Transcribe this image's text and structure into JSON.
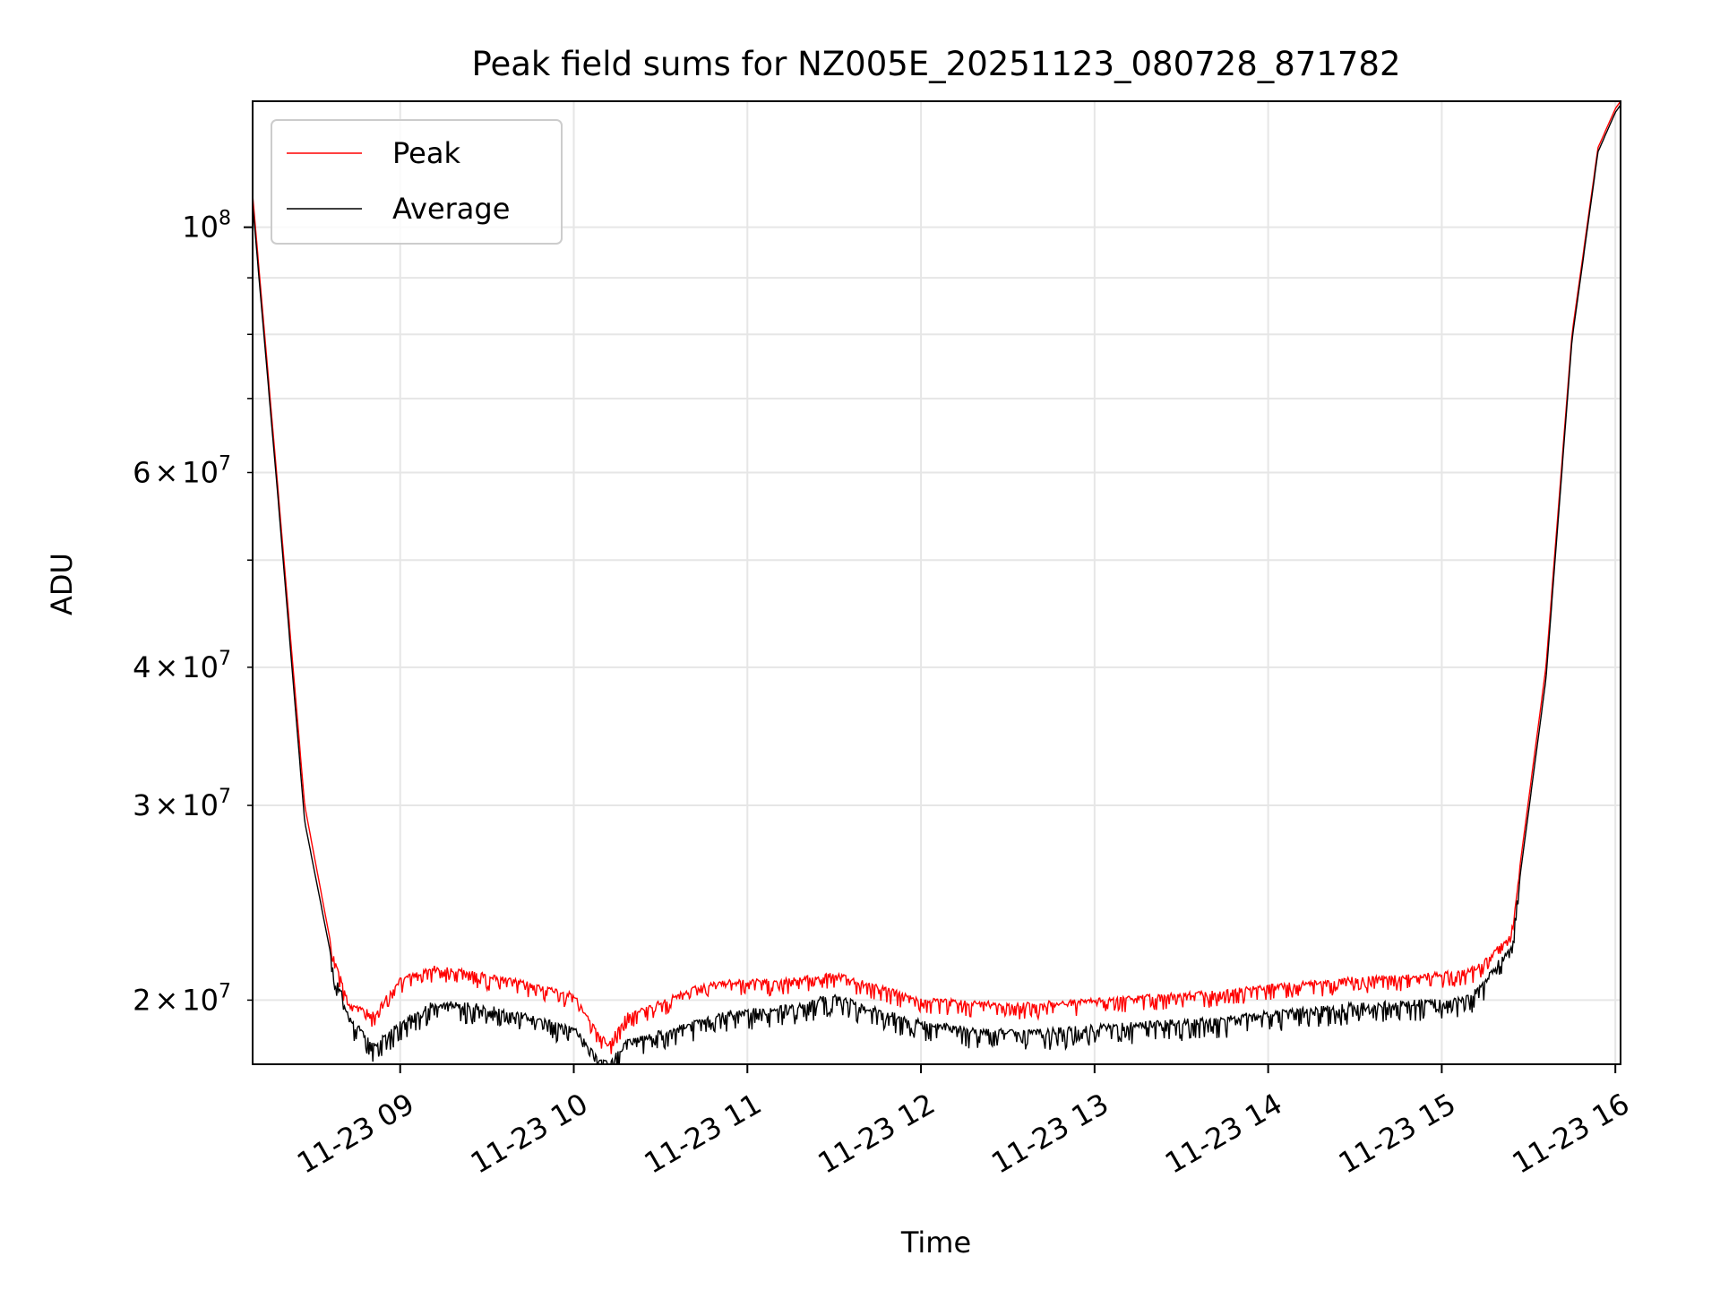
{
  "colors": {
    "background": "#ffffff",
    "grid": "#e6e6e6",
    "axes": "#000000",
    "peak": "#ff0000",
    "average": "#000000",
    "legend_border": "#cccccc"
  },
  "chart_data": {
    "type": "line",
    "title": "Peak field sums for NZ005E_20251123_080728_871782",
    "xlabel": "Time",
    "ylabel": "ADU",
    "yscale": "log",
    "grid": true,
    "legend_position": "upper-left",
    "xlim_hours": [
      8.15,
      16.03
    ],
    "ylim": [
      17500000,
      130000000
    ],
    "x_ticks": [
      {
        "value": 9,
        "label": "11-23 09"
      },
      {
        "value": 10,
        "label": "11-23 10"
      },
      {
        "value": 11,
        "label": "11-23 11"
      },
      {
        "value": 12,
        "label": "11-23 12"
      },
      {
        "value": 13,
        "label": "11-23 13"
      },
      {
        "value": 14,
        "label": "11-23 14"
      },
      {
        "value": 15,
        "label": "11-23 15"
      },
      {
        "value": 16,
        "label": "11-23 16"
      }
    ],
    "y_major_ticks": [
      {
        "value": 100000000,
        "base": "10",
        "exp": "8"
      }
    ],
    "y_minor_ticks": [
      {
        "value": 20000000,
        "mantissa": "2",
        "base": "10",
        "exp": "7"
      },
      {
        "value": 30000000,
        "mantissa": "3",
        "base": "10",
        "exp": "7"
      },
      {
        "value": 40000000,
        "mantissa": "4",
        "base": "10",
        "exp": "7"
      },
      {
        "value": 50000000
      },
      {
        "value": 60000000,
        "mantissa": "6",
        "base": "10",
        "exp": "7"
      },
      {
        "value": 70000000
      },
      {
        "value": 80000000
      },
      {
        "value": 90000000
      }
    ],
    "times_mult": "×",
    "series": [
      {
        "name": "Peak",
        "color": "#ff0000",
        "x": [
          8.15,
          8.3,
          8.45,
          8.6,
          8.7,
          8.85,
          9.0,
          9.2,
          9.4,
          9.6,
          9.8,
          10.0,
          10.1,
          10.2,
          10.3,
          10.5,
          10.7,
          10.9,
          11.1,
          11.3,
          11.5,
          11.7,
          12.0,
          12.3,
          12.6,
          13.0,
          13.4,
          13.7,
          13.9,
          14.2,
          14.5,
          14.8,
          15.1,
          15.2,
          15.4,
          15.6,
          15.75,
          15.9,
          16.0,
          16.03
        ],
        "y": [
          107000000,
          57000000,
          30000000,
          22500000,
          20000000,
          19500000,
          21000000,
          21500000,
          21300000,
          21000000,
          20700000,
          20300000,
          19200000,
          18300000,
          19500000,
          20000000,
          20600000,
          20900000,
          20900000,
          21000000,
          21200000,
          20800000,
          20100000,
          20000000,
          19900000,
          20100000,
          20300000,
          20400000,
          20600000,
          20800000,
          21000000,
          21100000,
          21300000,
          21500000,
          23000000,
          40000000,
          80000000,
          118000000,
          128000000,
          130000000
        ]
      },
      {
        "name": "Average",
        "color": "#000000",
        "x": [
          8.15,
          8.3,
          8.45,
          8.6,
          8.7,
          8.85,
          9.0,
          9.2,
          9.4,
          9.6,
          9.8,
          10.0,
          10.1,
          10.2,
          10.3,
          10.5,
          10.7,
          10.9,
          11.1,
          11.3,
          11.5,
          11.7,
          12.0,
          12.3,
          12.6,
          13.0,
          13.4,
          13.7,
          13.9,
          14.2,
          14.5,
          14.8,
          15.1,
          15.2,
          15.4,
          15.6,
          15.75,
          15.9,
          16.0,
          16.03
        ],
        "y": [
          105000000,
          56000000,
          29000000,
          22000000,
          19500000,
          18300000,
          19200000,
          20000000,
          19900000,
          19700000,
          19300000,
          19000000,
          18200000,
          17600000,
          18400000,
          18800000,
          19200000,
          19600000,
          19700000,
          19900000,
          20300000,
          19800000,
          19200000,
          18900000,
          18800000,
          19000000,
          19200000,
          19300000,
          19500000,
          19700000,
          19900000,
          20000000,
          20100000,
          20500000,
          22500000,
          39000000,
          79000000,
          117000000,
          127000000,
          129000000
        ]
      }
    ]
  }
}
